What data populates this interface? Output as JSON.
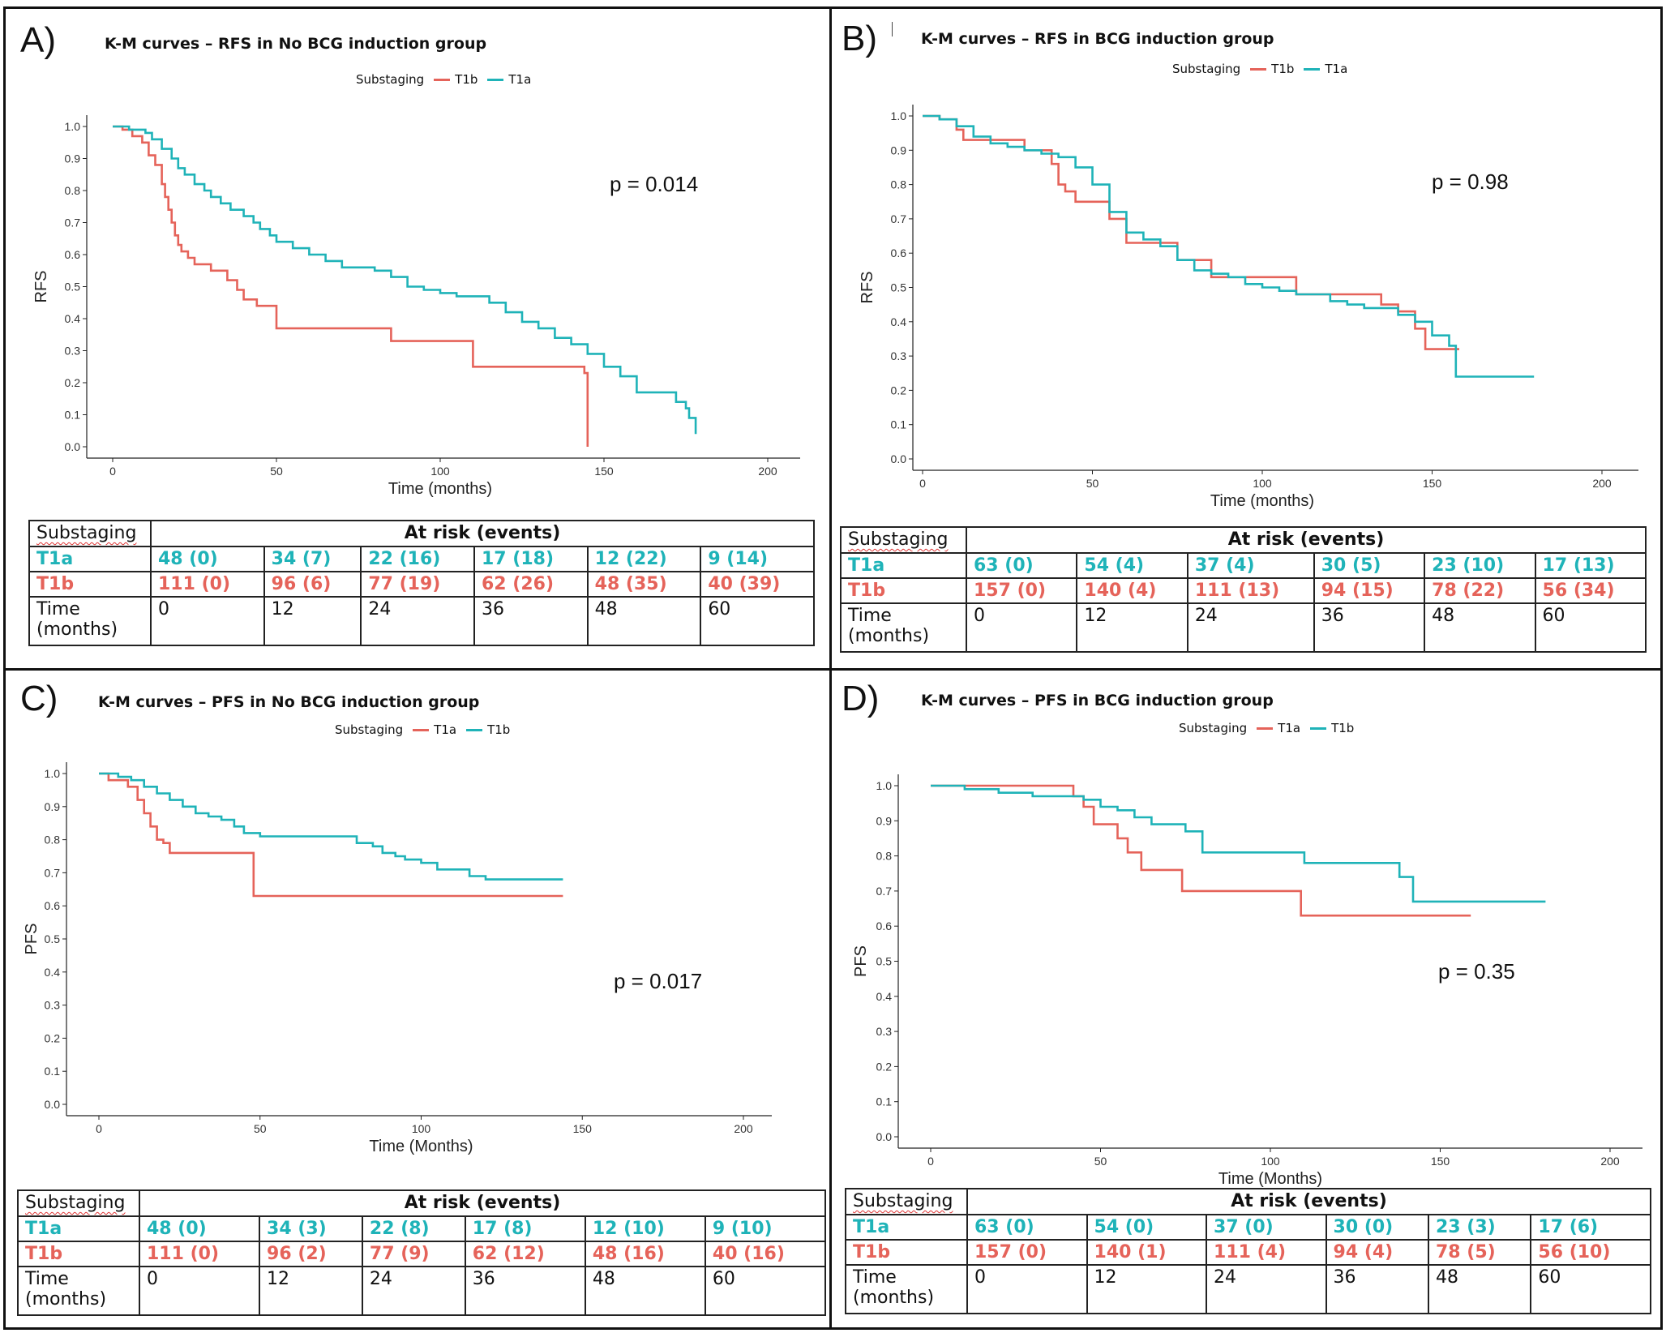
{
  "colors": {
    "red": "#e5635a",
    "cyan": "#1fb3b8",
    "grid": "#222222"
  },
  "panels": [
    {
      "label": "A)",
      "title": "K-M curves – RFS in No BCG induction group",
      "legend": {
        "title": "Substaging",
        "entries": [
          {
            "name": "T1b",
            "color": "#e5635a"
          },
          {
            "name": "T1a",
            "color": "#1fb3b8"
          }
        ]
      },
      "ylabel": "RFS",
      "xlabel": "Time (months)",
      "pvalue": "p = 0.014",
      "risk_table": {
        "substaging_label": "Substaging",
        "header": "At risk (events)",
        "rows": [
          {
            "name": "T1a",
            "cls": "g1",
            "values": [
              "48 (0)",
              "34 (7)",
              "22 (16)",
              "17 (18)",
              "12 (22)",
              "9 (14)"
            ]
          },
          {
            "name": "T1b",
            "cls": "g2",
            "values": [
              "111 (0)",
              "96 (6)",
              "77 (19)",
              "62 (26)",
              "48 (35)",
              "40 (39)"
            ]
          }
        ],
        "time_label": "Time\n(months)",
        "times": [
          "0",
          "12",
          "24",
          "36",
          "48",
          "60"
        ]
      }
    },
    {
      "label": "B)",
      "title": "K-M curves – RFS in BCG induction group",
      "legend": {
        "title": "Substaging",
        "entries": [
          {
            "name": "T1b",
            "color": "#e5635a"
          },
          {
            "name": "T1a",
            "color": "#1fb3b8"
          }
        ]
      },
      "ylabel": "RFS",
      "xlabel": "Time (months)",
      "pvalue": "p = 0.98",
      "risk_table": {
        "substaging_label": "Substaging",
        "header": "At risk (events)",
        "rows": [
          {
            "name": "T1a",
            "cls": "g1",
            "values": [
              "63 (0)",
              "54 (4)",
              "37 (4)",
              "30 (5)",
              "23 (10)",
              "17 (13)"
            ]
          },
          {
            "name": "T1b",
            "cls": "g2",
            "values": [
              "157 (0)",
              "140 (4)",
              "111 (13)",
              "94 (15)",
              "78 (22)",
              "56 (34)"
            ]
          }
        ],
        "time_label": "Time\n(months)",
        "times": [
          "0",
          "12",
          "24",
          "36",
          "48",
          "60"
        ]
      }
    },
    {
      "label": "C)",
      "title": "K-M curves – PFS in No BCG induction group",
      "legend": {
        "title": "Substaging",
        "entries": [
          {
            "name": "T1a",
            "color": "#e5635a"
          },
          {
            "name": "T1b",
            "color": "#1fb3b8"
          }
        ]
      },
      "ylabel": "PFS",
      "xlabel": "Time (Months)",
      "pvalue": "p = 0.017",
      "risk_table": {
        "substaging_label": "Substaging",
        "header": "At risk (events)",
        "rows": [
          {
            "name": "T1a",
            "cls": "g1",
            "values": [
              "48 (0)",
              "34 (3)",
              "22 (8)",
              "17 (8)",
              "12 (10)",
              "9 (10)"
            ]
          },
          {
            "name": "T1b",
            "cls": "g2",
            "values": [
              "111 (0)",
              "96 (2)",
              "77 (9)",
              "62 (12)",
              "48 (16)",
              "40 (16)"
            ]
          }
        ],
        "time_label": "Time\n(months)",
        "times": [
          "0",
          "12",
          "24",
          "36",
          "48",
          "60"
        ]
      }
    },
    {
      "label": "D)",
      "title": "K-M curves – PFS in BCG induction group",
      "legend": {
        "title": "Substaging",
        "entries": [
          {
            "name": "T1a",
            "color": "#e5635a"
          },
          {
            "name": "T1b",
            "color": "#1fb3b8"
          }
        ]
      },
      "ylabel": "PFS",
      "xlabel": "Time (Months)",
      "pvalue": "p = 0.35",
      "risk_table": {
        "substaging_label": "Substaging",
        "header": "At risk (events)",
        "rows": [
          {
            "name": "T1a",
            "cls": "g1",
            "values": [
              "63 (0)",
              "54 (0)",
              "37 (0)",
              "30 (0)",
              "23 (3)",
              "17 (6)"
            ]
          },
          {
            "name": "T1b",
            "cls": "g2",
            "values": [
              "157 (0)",
              "140 (1)",
              "111 (4)",
              "94 (4)",
              "78 (5)",
              "56 (10)"
            ]
          }
        ],
        "time_label": "Time\n(months)",
        "times": [
          "0",
          "12",
          "24",
          "36",
          "48",
          "60"
        ]
      }
    }
  ],
  "chart_data": [
    {
      "type": "line",
      "title": "K-M curves – RFS in No BCG induction group",
      "xlabel": "Time (months)",
      "ylabel": "RFS",
      "xlim": [
        0,
        200
      ],
      "ylim": [
        0,
        1
      ],
      "xticks": [
        "0",
        "50",
        "100",
        "150",
        "200"
      ],
      "yticks": [
        "0.0",
        "0.1",
        "0.2",
        "0.3",
        "0.4",
        "0.5",
        "0.6",
        "0.7",
        "0.8",
        "0.9",
        "1.0"
      ],
      "series": [
        {
          "name": "T1b",
          "color": "#e5635a",
          "x": [
            0,
            3,
            6,
            9,
            11,
            13,
            15,
            16,
            17,
            18,
            19,
            20,
            21,
            23,
            25,
            28,
            30,
            35,
            38,
            40,
            44,
            48,
            50,
            55,
            60,
            70,
            85,
            95,
            105,
            110,
            115,
            120,
            125,
            130,
            135,
            140,
            144,
            145,
            145
          ],
          "y": [
            1.0,
            0.99,
            0.97,
            0.95,
            0.91,
            0.88,
            0.82,
            0.78,
            0.74,
            0.7,
            0.66,
            0.63,
            0.61,
            0.59,
            0.57,
            0.57,
            0.55,
            0.52,
            0.49,
            0.46,
            0.44,
            0.44,
            0.37,
            0.37,
            0.37,
            0.37,
            0.33,
            0.33,
            0.33,
            0.25,
            0.25,
            0.25,
            0.25,
            0.25,
            0.25,
            0.25,
            0.23,
            0.2,
            0.0
          ]
        },
        {
          "name": "T1a",
          "color": "#1fb3b8",
          "x": [
            0,
            5,
            10,
            12,
            15,
            18,
            20,
            22,
            25,
            28,
            30,
            33,
            36,
            40,
            43,
            45,
            48,
            50,
            55,
            60,
            65,
            70,
            75,
            80,
            85,
            90,
            95,
            100,
            105,
            110,
            115,
            120,
            125,
            130,
            135,
            140,
            145,
            150,
            155,
            160,
            165,
            170,
            172,
            175,
            176,
            178
          ],
          "y": [
            1.0,
            0.99,
            0.98,
            0.96,
            0.93,
            0.9,
            0.87,
            0.85,
            0.82,
            0.8,
            0.78,
            0.76,
            0.74,
            0.72,
            0.7,
            0.68,
            0.66,
            0.64,
            0.62,
            0.6,
            0.58,
            0.56,
            0.56,
            0.55,
            0.53,
            0.5,
            0.49,
            0.48,
            0.47,
            0.47,
            0.45,
            0.42,
            0.39,
            0.37,
            0.34,
            0.32,
            0.29,
            0.25,
            0.22,
            0.17,
            0.17,
            0.17,
            0.14,
            0.12,
            0.09,
            0.04
          ]
        }
      ],
      "annotations": [
        "p = 0.014"
      ]
    },
    {
      "type": "line",
      "title": "K-M curves – RFS in BCG induction group",
      "xlabel": "Time (months)",
      "ylabel": "RFS",
      "xlim": [
        0,
        200
      ],
      "ylim": [
        0,
        1
      ],
      "xticks": [
        "0",
        "50",
        "100",
        "150",
        "200"
      ],
      "yticks": [
        "0.0",
        "0.1",
        "0.2",
        "0.3",
        "0.4",
        "0.5",
        "0.6",
        "0.7",
        "0.8",
        "0.9",
        "1.0"
      ],
      "series": [
        {
          "name": "T1b",
          "color": "#e5635a",
          "x": [
            0,
            5,
            10,
            12,
            20,
            30,
            38,
            40,
            42,
            45,
            48,
            55,
            60,
            65,
            70,
            75,
            80,
            85,
            90,
            100,
            105,
            110,
            120,
            130,
            135,
            140,
            145,
            148,
            150,
            152,
            155,
            158
          ],
          "y": [
            1.0,
            0.99,
            0.96,
            0.93,
            0.93,
            0.9,
            0.86,
            0.8,
            0.78,
            0.75,
            0.75,
            0.7,
            0.63,
            0.63,
            0.63,
            0.58,
            0.58,
            0.53,
            0.53,
            0.53,
            0.53,
            0.48,
            0.48,
            0.48,
            0.45,
            0.43,
            0.38,
            0.32,
            0.32,
            0.32,
            0.32,
            0.32
          ]
        },
        {
          "name": "T1a",
          "color": "#1fb3b8",
          "x": [
            0,
            5,
            10,
            15,
            20,
            25,
            30,
            35,
            40,
            45,
            50,
            55,
            60,
            65,
            70,
            75,
            80,
            85,
            90,
            95,
            100,
            105,
            110,
            115,
            120,
            125,
            130,
            135,
            140,
            145,
            150,
            155,
            157,
            160,
            170,
            180
          ],
          "y": [
            1.0,
            0.99,
            0.97,
            0.94,
            0.92,
            0.91,
            0.9,
            0.89,
            0.88,
            0.85,
            0.8,
            0.72,
            0.66,
            0.64,
            0.62,
            0.58,
            0.55,
            0.54,
            0.53,
            0.51,
            0.5,
            0.49,
            0.48,
            0.48,
            0.46,
            0.45,
            0.44,
            0.44,
            0.42,
            0.4,
            0.36,
            0.33,
            0.24,
            0.24,
            0.24,
            0.24
          ]
        }
      ],
      "annotations": [
        "p = 0.98"
      ]
    },
    {
      "type": "line",
      "title": "K-M curves – PFS in No BCG induction group",
      "xlabel": "Time (Months)",
      "ylabel": "PFS",
      "xlim": [
        0,
        200
      ],
      "ylim": [
        0,
        1
      ],
      "xticks": [
        "0",
        "50",
        "100",
        "150",
        "200"
      ],
      "yticks": [
        "0.0",
        "0.1",
        "0.2",
        "0.3",
        "0.4",
        "0.5",
        "0.6",
        "0.7",
        "0.8",
        "0.9",
        "1.0"
      ],
      "series": [
        {
          "name": "T1a",
          "color": "#e5635a",
          "x": [
            0,
            3,
            6,
            9,
            12,
            14,
            16,
            18,
            20,
            22,
            25,
            35,
            48,
            48,
            60,
            80,
            100,
            120,
            144
          ],
          "y": [
            1.0,
            0.98,
            0.98,
            0.96,
            0.92,
            0.88,
            0.84,
            0.8,
            0.79,
            0.76,
            0.76,
            0.76,
            0.76,
            0.63,
            0.63,
            0.63,
            0.63,
            0.63,
            0.63
          ]
        },
        {
          "name": "T1b",
          "color": "#1fb3b8",
          "x": [
            0,
            6,
            10,
            14,
            18,
            22,
            26,
            30,
            34,
            38,
            42,
            45,
            50,
            60,
            70,
            75,
            80,
            85,
            88,
            92,
            95,
            100,
            105,
            110,
            115,
            120,
            130,
            144
          ],
          "y": [
            1.0,
            0.99,
            0.98,
            0.96,
            0.94,
            0.92,
            0.9,
            0.88,
            0.87,
            0.86,
            0.84,
            0.82,
            0.81,
            0.81,
            0.81,
            0.81,
            0.79,
            0.78,
            0.76,
            0.75,
            0.74,
            0.73,
            0.71,
            0.71,
            0.69,
            0.68,
            0.68,
            0.68
          ]
        }
      ],
      "annotations": [
        "p = 0.017"
      ]
    },
    {
      "type": "line",
      "title": "K-M curves – PFS in BCG induction group",
      "xlabel": "Time (Months)",
      "ylabel": "PFS",
      "xlim": [
        0,
        200
      ],
      "ylim": [
        0,
        1
      ],
      "xticks": [
        "0",
        "50",
        "100",
        "150",
        "200"
      ],
      "yticks": [
        "0.0",
        "0.1",
        "0.2",
        "0.3",
        "0.4",
        "0.5",
        "0.6",
        "0.7",
        "0.8",
        "0.9",
        "1.0"
      ],
      "series": [
        {
          "name": "T1a",
          "color": "#e5635a",
          "x": [
            0,
            10,
            20,
            30,
            40,
            42,
            45,
            48,
            52,
            55,
            58,
            62,
            65,
            70,
            74,
            80,
            90,
            100,
            109,
            109,
            120,
            140,
            159
          ],
          "y": [
            1.0,
            1.0,
            1.0,
            1.0,
            1.0,
            0.97,
            0.94,
            0.89,
            0.89,
            0.85,
            0.81,
            0.76,
            0.76,
            0.76,
            0.7,
            0.7,
            0.7,
            0.7,
            0.7,
            0.63,
            0.63,
            0.63,
            0.63
          ]
        },
        {
          "name": "T1b",
          "color": "#1fb3b8",
          "x": [
            0,
            5,
            10,
            20,
            30,
            40,
            45,
            50,
            55,
            60,
            65,
            70,
            75,
            80,
            85,
            90,
            95,
            100,
            110,
            120,
            130,
            136,
            138,
            142,
            150,
            160,
            170,
            181
          ],
          "y": [
            1.0,
            1.0,
            0.99,
            0.98,
            0.97,
            0.97,
            0.96,
            0.94,
            0.93,
            0.91,
            0.89,
            0.89,
            0.87,
            0.81,
            0.81,
            0.81,
            0.81,
            0.81,
            0.78,
            0.78,
            0.78,
            0.78,
            0.74,
            0.67,
            0.67,
            0.67,
            0.67,
            0.67
          ]
        }
      ],
      "annotations": [
        "p = 0.35"
      ]
    }
  ]
}
